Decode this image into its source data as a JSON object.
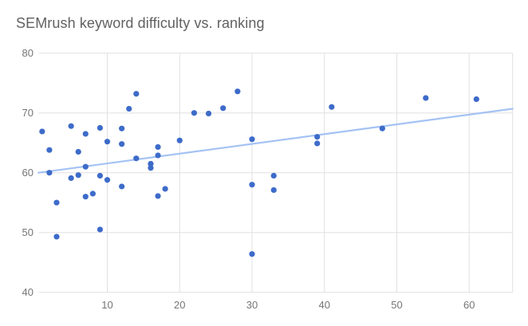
{
  "chart_data": {
    "type": "scatter",
    "title": "SEMrush keyword difficulty vs. ranking",
    "xlabel": "",
    "ylabel": "",
    "x_ticks": [
      10,
      20,
      30,
      40,
      50,
      60
    ],
    "y_ticks": [
      40,
      50,
      60,
      70,
      80
    ],
    "xlim": [
      0.5,
      66
    ],
    "ylim": [
      40,
      80
    ],
    "grid": true,
    "legend_position": "none",
    "points": [
      [
        1,
        66.9
      ],
      [
        2,
        63.8
      ],
      [
        2,
        60.0
      ],
      [
        3,
        55.0
      ],
      [
        3,
        49.3
      ],
      [
        5,
        67.8
      ],
      [
        5,
        59.1
      ],
      [
        6,
        63.5
      ],
      [
        6,
        59.6
      ],
      [
        7,
        66.5
      ],
      [
        7,
        61.0
      ],
      [
        7,
        56.0
      ],
      [
        8,
        56.5
      ],
      [
        9,
        67.5
      ],
      [
        9,
        59.5
      ],
      [
        9,
        50.5
      ],
      [
        10,
        65.2
      ],
      [
        10,
        58.8
      ],
      [
        12,
        67.4
      ],
      [
        12,
        64.8
      ],
      [
        12,
        57.7
      ],
      [
        13,
        70.7
      ],
      [
        14,
        73.2
      ],
      [
        14,
        62.4
      ],
      [
        16,
        61.5
      ],
      [
        16,
        60.8
      ],
      [
        17,
        64.3
      ],
      [
        17,
        62.9
      ],
      [
        17,
        56.1
      ],
      [
        18,
        57.3
      ],
      [
        20,
        65.4
      ],
      [
        22,
        70.0
      ],
      [
        24,
        69.9
      ],
      [
        26,
        70.8
      ],
      [
        28,
        73.6
      ],
      [
        30,
        65.6
      ],
      [
        30,
        58.0
      ],
      [
        30,
        46.4
      ],
      [
        33,
        59.5
      ],
      [
        33,
        57.1
      ],
      [
        39,
        66.0
      ],
      [
        39,
        64.9
      ],
      [
        41,
        71.0
      ],
      [
        48,
        67.4
      ],
      [
        54,
        72.5
      ],
      [
        61,
        72.3
      ]
    ],
    "trendline": {
      "x1": 0.5,
      "y1": 60.0,
      "x2": 66,
      "y2": 70.7
    },
    "colors": {
      "point": "#3d6bc9",
      "trendline": "#a4c2f4",
      "gridline": "#e0e0e0",
      "tick_label": "#757575",
      "title": "#616161",
      "background": "#ffffff"
    }
  }
}
